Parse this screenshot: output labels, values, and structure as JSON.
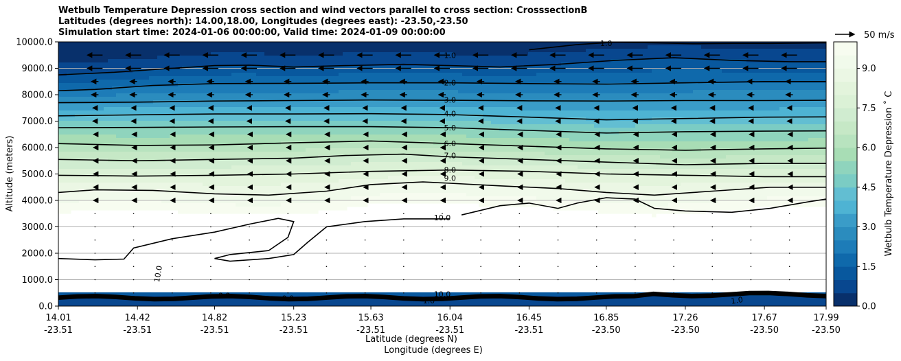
{
  "chart_data": {
    "type": "heatmap",
    "title_lines": [
      "Wetbulb Temperature Depression cross section and wind vectors parallel to cross section: CrosssectionB",
      "Latitudes (degrees north): 14.00,18.00, Longitudes (degrees east): -23.50,-23.50",
      "Simulation start time: 2024-01-06 00:00:00, Valid time: 2024-01-09 00:00:00"
    ],
    "ylabel": "Altitude (meters)",
    "xlabel_1": "Latitude (degrees N)",
    "xlabel_2": "Longitude (degrees E)",
    "ylim": [
      0,
      10000
    ],
    "y_ticks": [
      {
        "value": 0,
        "label": "0.0"
      },
      {
        "value": 1000,
        "label": "1000.0"
      },
      {
        "value": 2000,
        "label": "2000.0"
      },
      {
        "value": 3000,
        "label": "3000.0"
      },
      {
        "value": 4000,
        "label": "4000.0"
      },
      {
        "value": 5000,
        "label": "5000.0"
      },
      {
        "value": 6000,
        "label": "6000.0"
      },
      {
        "value": 7000,
        "label": "7000.0"
      },
      {
        "value": 8000,
        "label": "8000.0"
      },
      {
        "value": 9000,
        "label": "9000.0"
      },
      {
        "value": 10000,
        "label": "10000.0"
      }
    ],
    "xlim": [
      14.01,
      17.99
    ],
    "x_ticks": [
      {
        "lat": 14.01,
        "lat_label": "14.01",
        "lon_label": "-23.51"
      },
      {
        "lat": 14.42,
        "lat_label": "14.42",
        "lon_label": "-23.51"
      },
      {
        "lat": 14.82,
        "lat_label": "14.82",
        "lon_label": "-23.51"
      },
      {
        "lat": 15.23,
        "lat_label": "15.23",
        "lon_label": "-23.51"
      },
      {
        "lat": 15.63,
        "lat_label": "15.63",
        "lon_label": "-23.51"
      },
      {
        "lat": 16.04,
        "lat_label": "16.04",
        "lon_label": "-23.51"
      },
      {
        "lat": 16.45,
        "lat_label": "16.45",
        "lon_label": "-23.51"
      },
      {
        "lat": 16.85,
        "lat_label": "16.85",
        "lon_label": "-23.50"
      },
      {
        "lat": 17.26,
        "lat_label": "17.26",
        "lon_label": "-23.50"
      },
      {
        "lat": 17.67,
        "lat_label": "17.67",
        "lon_label": "-23.50"
      },
      {
        "lat": 17.99,
        "lat_label": "17.99",
        "lon_label": "-23.50"
      }
    ],
    "grid_y": [
      1000,
      2000,
      3000,
      4000,
      9000
    ],
    "colorbar": {
      "label": "Wetbulb Temperature Depression ˚ C",
      "range": [
        0,
        10
      ],
      "levels": 20,
      "ticks": [
        {
          "value": 0,
          "label": "0.0"
        },
        {
          "value": 1.5,
          "label": "1.5"
        },
        {
          "value": 3,
          "label": "3.0"
        },
        {
          "value": 4.5,
          "label": "4.5"
        },
        {
          "value": 6,
          "label": "6.0"
        },
        {
          "value": 7.5,
          "label": "7.5"
        },
        {
          "value": 9,
          "label": "9.0"
        }
      ],
      "colors": [
        "#08306b",
        "#08478f",
        "#08589e",
        "#0f69ab",
        "#1d7cb8",
        "#2b8cbe",
        "#3a9cc8",
        "#4eb3d3",
        "#62bed2",
        "#7bccc4",
        "#8fd4bd",
        "#a8ddb5",
        "#b8e3bf",
        "#c6e8c6",
        "#d0ecd0",
        "#dbf1d6",
        "#e3f4dc",
        "#ebf7e4",
        "#f1faeb",
        "#f7fcf0"
      ]
    },
    "wind_key": {
      "label": "50 m/s",
      "speed_ms": 50
    },
    "contour_lines": [
      {
        "value": 1.0,
        "label": "1.0",
        "label_lat": 16.04,
        "label_alt": 9500,
        "points": [
          [
            14.01,
            8750
          ],
          [
            14.3,
            8850
          ],
          [
            14.6,
            9000
          ],
          [
            14.82,
            9100
          ],
          [
            15.0,
            9120
          ],
          [
            15.23,
            9050
          ],
          [
            15.5,
            9100
          ],
          [
            15.8,
            9150
          ],
          [
            16.04,
            9100
          ],
          [
            16.3,
            9050
          ],
          [
            16.6,
            9150
          ],
          [
            16.9,
            9300
          ],
          [
            17.2,
            9400
          ],
          [
            17.5,
            9300
          ],
          [
            17.8,
            9250
          ],
          [
            17.99,
            9250
          ]
        ]
      },
      {
        "value": 1.0,
        "label": "1.0",
        "label_lat": 16.85,
        "label_alt": 9950,
        "points": [
          [
            16.45,
            9700
          ],
          [
            16.7,
            9900
          ],
          [
            16.9,
            9990
          ],
          [
            17.1,
            9960
          ],
          [
            17.3,
            9930
          ],
          [
            17.5,
            9940
          ],
          [
            17.7,
            9940
          ],
          [
            17.99,
            9960
          ]
        ]
      },
      {
        "value": 2.0,
        "label": "2.0",
        "label_lat": 16.04,
        "label_alt": 8450,
        "points": [
          [
            14.01,
            8150
          ],
          [
            14.2,
            8200
          ],
          [
            14.5,
            8350
          ],
          [
            14.82,
            8420
          ],
          [
            15.23,
            8430
          ],
          [
            15.63,
            8450
          ],
          [
            16.04,
            8450
          ],
          [
            16.45,
            8420
          ],
          [
            16.85,
            8400
          ],
          [
            17.26,
            8450
          ],
          [
            17.67,
            8500
          ],
          [
            17.99,
            8500
          ]
        ]
      },
      {
        "value": 3.0,
        "label": "3.0",
        "label_lat": 16.04,
        "label_alt": 7800,
        "points": [
          [
            14.01,
            7700
          ],
          [
            14.42,
            7720
          ],
          [
            14.82,
            7760
          ],
          [
            15.23,
            7780
          ],
          [
            15.63,
            7800
          ],
          [
            16.04,
            7790
          ],
          [
            16.45,
            7770
          ],
          [
            16.85,
            7760
          ],
          [
            17.26,
            7780
          ],
          [
            17.67,
            7780
          ],
          [
            17.99,
            7790
          ]
        ]
      },
      {
        "value": 4.0,
        "label": "4.0",
        "label_lat": 16.04,
        "label_alt": 7280,
        "points": [
          [
            14.01,
            7200
          ],
          [
            14.42,
            7240
          ],
          [
            14.82,
            7270
          ],
          [
            15.23,
            7270
          ],
          [
            15.63,
            7280
          ],
          [
            16.04,
            7250
          ],
          [
            16.45,
            7150
          ],
          [
            16.85,
            7050
          ],
          [
            17.26,
            7100
          ],
          [
            17.67,
            7150
          ],
          [
            17.99,
            7160
          ]
        ]
      },
      {
        "value": 5.0,
        "label": "5.0",
        "label_lat": 16.04,
        "label_alt": 6750,
        "points": [
          [
            14.01,
            6750
          ],
          [
            14.42,
            6760
          ],
          [
            14.82,
            6780
          ],
          [
            15.23,
            6790
          ],
          [
            15.63,
            6790
          ],
          [
            16.04,
            6750
          ],
          [
            16.45,
            6650
          ],
          [
            16.85,
            6550
          ],
          [
            17.26,
            6600
          ],
          [
            17.67,
            6620
          ],
          [
            17.99,
            6630
          ]
        ]
      },
      {
        "value": 6.0,
        "label": "6.0",
        "label_lat": 16.04,
        "label_alt": 6150,
        "points": [
          [
            14.01,
            6150
          ],
          [
            14.42,
            6080
          ],
          [
            14.82,
            6100
          ],
          [
            15.23,
            6180
          ],
          [
            15.63,
            6250
          ],
          [
            16.04,
            6150
          ],
          [
            16.45,
            6050
          ],
          [
            16.85,
            5950
          ],
          [
            17.26,
            5900
          ],
          [
            17.67,
            5950
          ],
          [
            17.99,
            5980
          ]
        ]
      },
      {
        "value": 7.0,
        "label": "7.0",
        "label_lat": 16.04,
        "label_alt": 5700,
        "points": [
          [
            14.01,
            5550
          ],
          [
            14.42,
            5500
          ],
          [
            14.82,
            5550
          ],
          [
            15.23,
            5600
          ],
          [
            15.5,
            5700
          ],
          [
            15.8,
            5750
          ],
          [
            16.04,
            5650
          ],
          [
            16.45,
            5550
          ],
          [
            16.85,
            5450
          ],
          [
            17.26,
            5350
          ],
          [
            17.67,
            5400
          ],
          [
            17.99,
            5400
          ]
        ]
      },
      {
        "value": 8.0,
        "label": "8.0",
        "label_lat": 16.04,
        "label_alt": 5150,
        "points": [
          [
            14.01,
            4950
          ],
          [
            14.42,
            4920
          ],
          [
            14.82,
            4950
          ],
          [
            15.23,
            5000
          ],
          [
            15.63,
            5100
          ],
          [
            16.04,
            5150
          ],
          [
            16.45,
            5100
          ],
          [
            16.85,
            5000
          ],
          [
            17.26,
            4950
          ],
          [
            17.67,
            4900
          ],
          [
            17.99,
            4900
          ]
        ]
      },
      {
        "value": 9.0,
        "label": "9.0",
        "label_lat": 16.04,
        "label_alt": 4850,
        "points": [
          [
            14.01,
            4300
          ],
          [
            14.2,
            4400
          ],
          [
            14.5,
            4380
          ],
          [
            14.82,
            4250
          ],
          [
            15.1,
            4200
          ],
          [
            15.4,
            4350
          ],
          [
            15.63,
            4600
          ],
          [
            15.9,
            4700
          ],
          [
            16.04,
            4650
          ],
          [
            16.3,
            4550
          ],
          [
            16.6,
            4450
          ],
          [
            16.85,
            4300
          ],
          [
            17.1,
            4200
          ],
          [
            17.4,
            4350
          ],
          [
            17.7,
            4500
          ],
          [
            17.99,
            4500
          ]
        ]
      },
      {
        "value": 10.0,
        "label": "10.0",
        "label_lat": 16.0,
        "label_alt": 3350,
        "points": [
          [
            14.01,
            1800
          ],
          [
            14.2,
            1750
          ],
          [
            14.35,
            1780
          ],
          [
            14.4,
            2200
          ],
          [
            14.6,
            2550
          ],
          [
            14.82,
            2800
          ],
          [
            15.0,
            3100
          ],
          [
            15.15,
            3320
          ],
          [
            15.23,
            3200
          ],
          [
            15.2,
            2600
          ],
          [
            15.1,
            2100
          ],
          [
            14.9,
            1950
          ],
          [
            14.82,
            1800
          ],
          [
            14.9,
            1700
          ],
          [
            15.1,
            1800
          ],
          [
            15.23,
            1950
          ],
          [
            15.3,
            2400
          ],
          [
            15.4,
            3000
          ],
          [
            15.6,
            3200
          ],
          [
            15.8,
            3300
          ],
          [
            16.04,
            3300
          ]
        ]
      },
      {
        "value": 10.0,
        "label": "",
        "label_lat": 0,
        "label_alt": 0,
        "points": [
          [
            16.1,
            3450
          ],
          [
            16.3,
            3800
          ],
          [
            16.45,
            3900
          ],
          [
            16.6,
            3700
          ],
          [
            16.7,
            3900
          ],
          [
            16.85,
            4100
          ],
          [
            17.0,
            4050
          ],
          [
            17.1,
            3700
          ],
          [
            17.26,
            3600
          ],
          [
            17.5,
            3550
          ],
          [
            17.7,
            3700
          ],
          [
            17.9,
            3950
          ],
          [
            17.99,
            4050
          ]
        ]
      }
    ],
    "annotations": [
      {
        "text": "10.0",
        "lat": 14.54,
        "alt": 1200,
        "angle": -80
      },
      {
        "text": "10.0",
        "lat": 16.0,
        "alt": 350,
        "angle": 0
      },
      {
        "text": "1.0",
        "lat": 15.93,
        "alt": 100,
        "angle": 0
      },
      {
        "text": "1.0",
        "lat": 17.53,
        "alt": 120,
        "angle": -10
      },
      {
        "text": "0.0",
        "lat": 15.2,
        "alt": 200,
        "angle": 0
      },
      {
        "text": "0.0",
        "lat": 14.87,
        "alt": 300,
        "angle": 0
      }
    ]
  }
}
